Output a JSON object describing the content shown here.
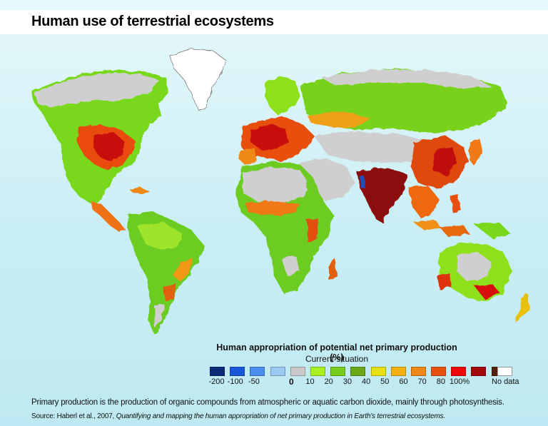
{
  "title": "Human use of terrestrial ecosystems",
  "legend": {
    "title": "Human appropriation of potential net primary production (%)",
    "subtitle": "Current situation",
    "classes": [
      {
        "label": "-200",
        "color": "#0a2b78"
      },
      {
        "label": "-100",
        "color": "#1858d8"
      },
      {
        "label": "-50",
        "color": "#4a8ef0"
      },
      {
        "label": "",
        "color": "#9cc8f4"
      },
      {
        "label": "0",
        "color": "#c8c8c8"
      },
      {
        "label": "10",
        "color": "#a8f020"
      },
      {
        "label": "20",
        "color": "#78cc20"
      },
      {
        "label": "30",
        "color": "#6aa818"
      },
      {
        "label": "40",
        "color": "#e6e010"
      },
      {
        "label": "50",
        "color": "#f4b010"
      },
      {
        "label": "60",
        "color": "#f08818"
      },
      {
        "label": "70",
        "color": "#e85010"
      },
      {
        "label": "80",
        "color": "#f00808"
      },
      {
        "label": "100%",
        "color": "#a00808"
      },
      {
        "label": "",
        "color": "#582008"
      }
    ],
    "no_data_label": "No data",
    "no_data_color": "#ffffff"
  },
  "caption": "Primary production is the production of organic compounds from atmospheric or aquatic carbon dioxide, mainly through photosynthesis.",
  "source": {
    "prefix": "Source: Haberl et al., 2007,",
    "italic": "Quantifying and mapping the human appropriation of net primary production in Earth's terrestrial ecosystems."
  }
}
